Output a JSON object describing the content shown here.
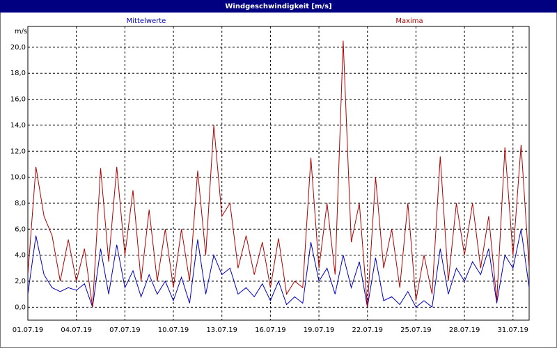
{
  "chart_data": {
    "type": "line",
    "title": "Windgeschwindigkeit [m/s]",
    "y_label": "m/s",
    "x": [
      0,
      0.5,
      1,
      1.5,
      2,
      2.5,
      3,
      3.5,
      4,
      4.5,
      5,
      5.5,
      6,
      6.5,
      7,
      7.5,
      8,
      8.5,
      9,
      9.5,
      10,
      10.5,
      11,
      11.5,
      12,
      12.5,
      13,
      13.5,
      14,
      14.5,
      15,
      15.5,
      16,
      16.5,
      17,
      17.5,
      18,
      18.5,
      19,
      19.5,
      20,
      20.5,
      21,
      21.5,
      22,
      22.5,
      23,
      23.5,
      24,
      24.5,
      25,
      25.5,
      26,
      26.5,
      27,
      27.5,
      28,
      28.5,
      29,
      29.5,
      30,
      30.5,
      31
    ],
    "series": [
      {
        "name": "Mittelwerte",
        "color": "#0000c0",
        "values": [
          1,
          5.5,
          2.5,
          1.5,
          1.2,
          1.5,
          1.3,
          1.8,
          0,
          4.5,
          1,
          4.8,
          1.5,
          2.8,
          0.8,
          2.5,
          1,
          2,
          0.5,
          2.3,
          0.3,
          5.2,
          1,
          4,
          2.5,
          3,
          1,
          1.5,
          0.8,
          1.8,
          0.5,
          2,
          0.2,
          0.8,
          0.3,
          5,
          2,
          3,
          1,
          4,
          1.5,
          3.5,
          0,
          3.8,
          0.5,
          0.8,
          0.2,
          1.2,
          0,
          0.5,
          0,
          4.5,
          1,
          3,
          2,
          3.5,
          2.5,
          4.5,
          0.3,
          4,
          3,
          6,
          1.5
        ]
      },
      {
        "name": "Maxima",
        "color": "#b00000",
        "values": [
          2.5,
          10.8,
          7,
          5.5,
          2,
          5.2,
          2,
          4.5,
          0,
          10.7,
          3.5,
          10.8,
          4,
          9,
          2,
          7.5,
          2,
          6,
          1.5,
          6,
          2,
          10.5,
          4,
          14,
          7,
          8,
          3,
          5.5,
          2.5,
          5,
          1.5,
          5.3,
          1,
          2,
          1.5,
          11.5,
          3,
          8,
          2.5,
          20.5,
          5,
          8,
          0,
          10,
          3,
          6,
          1.5,
          8,
          0.5,
          4,
          1,
          11.6,
          2,
          8,
          4,
          8,
          3,
          7,
          0.5,
          12.3,
          4,
          12.5,
          3
        ]
      }
    ],
    "xlim": [
      0,
      31
    ],
    "xticks": [
      {
        "value": 0,
        "label": "01.07.19"
      },
      {
        "value": 3,
        "label": "04.07.19"
      },
      {
        "value": 6,
        "label": "07.07.19"
      },
      {
        "value": 9,
        "label": "10.07.19"
      },
      {
        "value": 12,
        "label": "13.07.19"
      },
      {
        "value": 15,
        "label": "16.07.19"
      },
      {
        "value": 18,
        "label": "19.07.19"
      },
      {
        "value": 21,
        "label": "22.07.19"
      },
      {
        "value": 24,
        "label": "25.07.19"
      },
      {
        "value": 27,
        "label": "28.07.19"
      },
      {
        "value": 30,
        "label": "31.07.19"
      }
    ],
    "ylim": [
      -1,
      21.6
    ],
    "yticks": [
      {
        "value": 0,
        "label": "0,0"
      },
      {
        "value": 2,
        "label": "2,0"
      },
      {
        "value": 4,
        "label": "4,0"
      },
      {
        "value": 6,
        "label": "6,0"
      },
      {
        "value": 8,
        "label": "8,0"
      },
      {
        "value": 10,
        "label": "10,0"
      },
      {
        "value": 12,
        "label": "12,0"
      },
      {
        "value": 14,
        "label": "14,0"
      },
      {
        "value": 16,
        "label": "16,0"
      },
      {
        "value": 18,
        "label": "18,0"
      },
      {
        "value": 20,
        "label": "20,0"
      }
    ],
    "grid": true
  }
}
